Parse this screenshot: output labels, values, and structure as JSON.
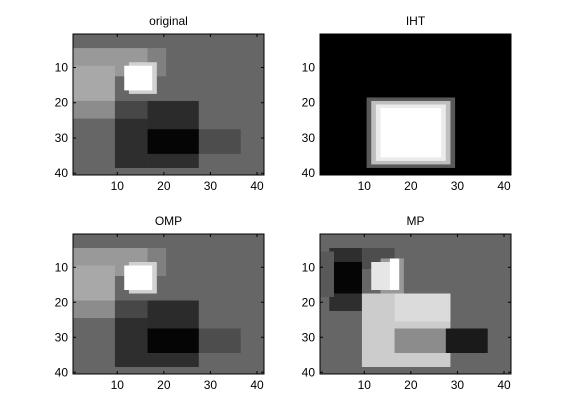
{
  "background": "#ffffff",
  "chart_data": [
    {
      "type": "heatmap",
      "title": "original",
      "colormap": "gray",
      "xlim": [
        0.5,
        41.5
      ],
      "ylim": [
        0.5,
        40.5
      ],
      "y_direction": "reversed",
      "xticks": [
        10,
        20,
        30,
        40
      ],
      "yticks": [
        10,
        20,
        30,
        40
      ],
      "background_level": 0.4,
      "rects": [
        {
          "x": [
            1,
            16
          ],
          "y": [
            5,
            12
          ],
          "level": 0.6
        },
        {
          "x": [
            17,
            20
          ],
          "y": [
            5,
            12
          ],
          "level": 0.5
        },
        {
          "x": [
            1,
            9
          ],
          "y": [
            10,
            19
          ],
          "level": 0.66
        },
        {
          "x": [
            1,
            9
          ],
          "y": [
            20,
            24
          ],
          "level": 0.55
        },
        {
          "x": [
            10,
            16
          ],
          "y": [
            20,
            24
          ],
          "level": 0.28
        },
        {
          "x": [
            17,
            27
          ],
          "y": [
            20,
            30
          ],
          "level": 0.17
        },
        {
          "x": [
            10,
            16
          ],
          "y": [
            25,
            38
          ],
          "level": 0.18
        },
        {
          "x": [
            17,
            27
          ],
          "y": [
            31,
            38
          ],
          "level": 0.18
        },
        {
          "x": [
            28,
            36
          ],
          "y": [
            28,
            34
          ],
          "level": 0.3
        },
        {
          "x": [
            17,
            27
          ],
          "y": [
            28,
            34
          ],
          "level": 0.02
        },
        {
          "x": [
            13,
            18
          ],
          "y": [
            9,
            17
          ],
          "level": 0.82
        },
        {
          "x": [
            12,
            17
          ],
          "y": [
            10,
            16
          ],
          "level": 1.0
        }
      ]
    },
    {
      "type": "heatmap",
      "title": "IHT",
      "colormap": "gray",
      "xlim": [
        0.5,
        41.5
      ],
      "ylim": [
        0.5,
        40.5
      ],
      "y_direction": "reversed",
      "xticks": [
        10,
        20,
        30,
        40
      ],
      "yticks": [
        10,
        20,
        30,
        40
      ],
      "background_level": 0.0,
      "rects": [
        {
          "x": [
            11,
            29
          ],
          "y": [
            19,
            38
          ],
          "level": 0.35
        },
        {
          "x": [
            12,
            28
          ],
          "y": [
            20,
            37
          ],
          "level": 0.75
        },
        {
          "x": [
            13,
            27
          ],
          "y": [
            21,
            36
          ],
          "level": 0.92
        },
        {
          "x": [
            14,
            26
          ],
          "y": [
            22,
            35
          ],
          "level": 1.0
        }
      ]
    },
    {
      "type": "heatmap",
      "title": "OMP",
      "colormap": "gray",
      "xlim": [
        0.5,
        41.5
      ],
      "ylim": [
        0.5,
        40.5
      ],
      "y_direction": "reversed",
      "xticks": [
        10,
        20,
        30,
        40
      ],
      "yticks": [
        10,
        20,
        30,
        40
      ],
      "background_level": 0.4,
      "rects": [
        {
          "x": [
            1,
            16
          ],
          "y": [
            5,
            12
          ],
          "level": 0.6
        },
        {
          "x": [
            17,
            20
          ],
          "y": [
            5,
            12
          ],
          "level": 0.5
        },
        {
          "x": [
            1,
            9
          ],
          "y": [
            10,
            19
          ],
          "level": 0.66
        },
        {
          "x": [
            1,
            9
          ],
          "y": [
            20,
            24
          ],
          "level": 0.55
        },
        {
          "x": [
            10,
            16
          ],
          "y": [
            20,
            24
          ],
          "level": 0.28
        },
        {
          "x": [
            17,
            27
          ],
          "y": [
            20,
            30
          ],
          "level": 0.17
        },
        {
          "x": [
            10,
            16
          ],
          "y": [
            25,
            38
          ],
          "level": 0.18
        },
        {
          "x": [
            17,
            27
          ],
          "y": [
            31,
            38
          ],
          "level": 0.18
        },
        {
          "x": [
            28,
            36
          ],
          "y": [
            28,
            34
          ],
          "level": 0.3
        },
        {
          "x": [
            17,
            27
          ],
          "y": [
            28,
            34
          ],
          "level": 0.02
        },
        {
          "x": [
            13,
            18
          ],
          "y": [
            9,
            17
          ],
          "level": 0.82
        },
        {
          "x": [
            12,
            17
          ],
          "y": [
            10,
            16
          ],
          "level": 1.0
        }
      ]
    },
    {
      "type": "heatmap",
      "title": "MP",
      "colormap": "gray",
      "xlim": [
        0.5,
        41.5
      ],
      "ylim": [
        0.5,
        40.5
      ],
      "y_direction": "reversed",
      "xticks": [
        10,
        20,
        30,
        40
      ],
      "yticks": [
        10,
        20,
        30,
        40
      ],
      "background_level": 0.4,
      "rects": [
        {
          "x": [
            3,
            9
          ],
          "y": [
            5,
            22
          ],
          "level": 0.18
        },
        {
          "x": [
            10,
            16
          ],
          "y": [
            5,
            10
          ],
          "level": 0.3
        },
        {
          "x": [
            4,
            9
          ],
          "y": [
            9,
            17
          ],
          "level": 0.02
        },
        {
          "x": [
            1,
            3
          ],
          "y": [
            6,
            18
          ],
          "level": 0.35
        },
        {
          "x": [
            10,
            16
          ],
          "y": [
            18,
            24
          ],
          "level": 0.25
        },
        {
          "x": [
            10,
            28
          ],
          "y": [
            18,
            38
          ],
          "level": 0.8
        },
        {
          "x": [
            17,
            28
          ],
          "y": [
            18,
            25
          ],
          "level": 0.86
        },
        {
          "x": [
            17,
            27
          ],
          "y": [
            28,
            34
          ],
          "level": 0.55
        },
        {
          "x": [
            28,
            36
          ],
          "y": [
            28,
            34
          ],
          "level": 0.1
        },
        {
          "x": [
            14,
            18
          ],
          "y": [
            8,
            17
          ],
          "level": 0.6
        },
        {
          "x": [
            12,
            16
          ],
          "y": [
            9,
            16
          ],
          "level": 0.9
        },
        {
          "x": [
            16,
            17
          ],
          "y": [
            8,
            16
          ],
          "level": 1.0
        }
      ]
    }
  ]
}
